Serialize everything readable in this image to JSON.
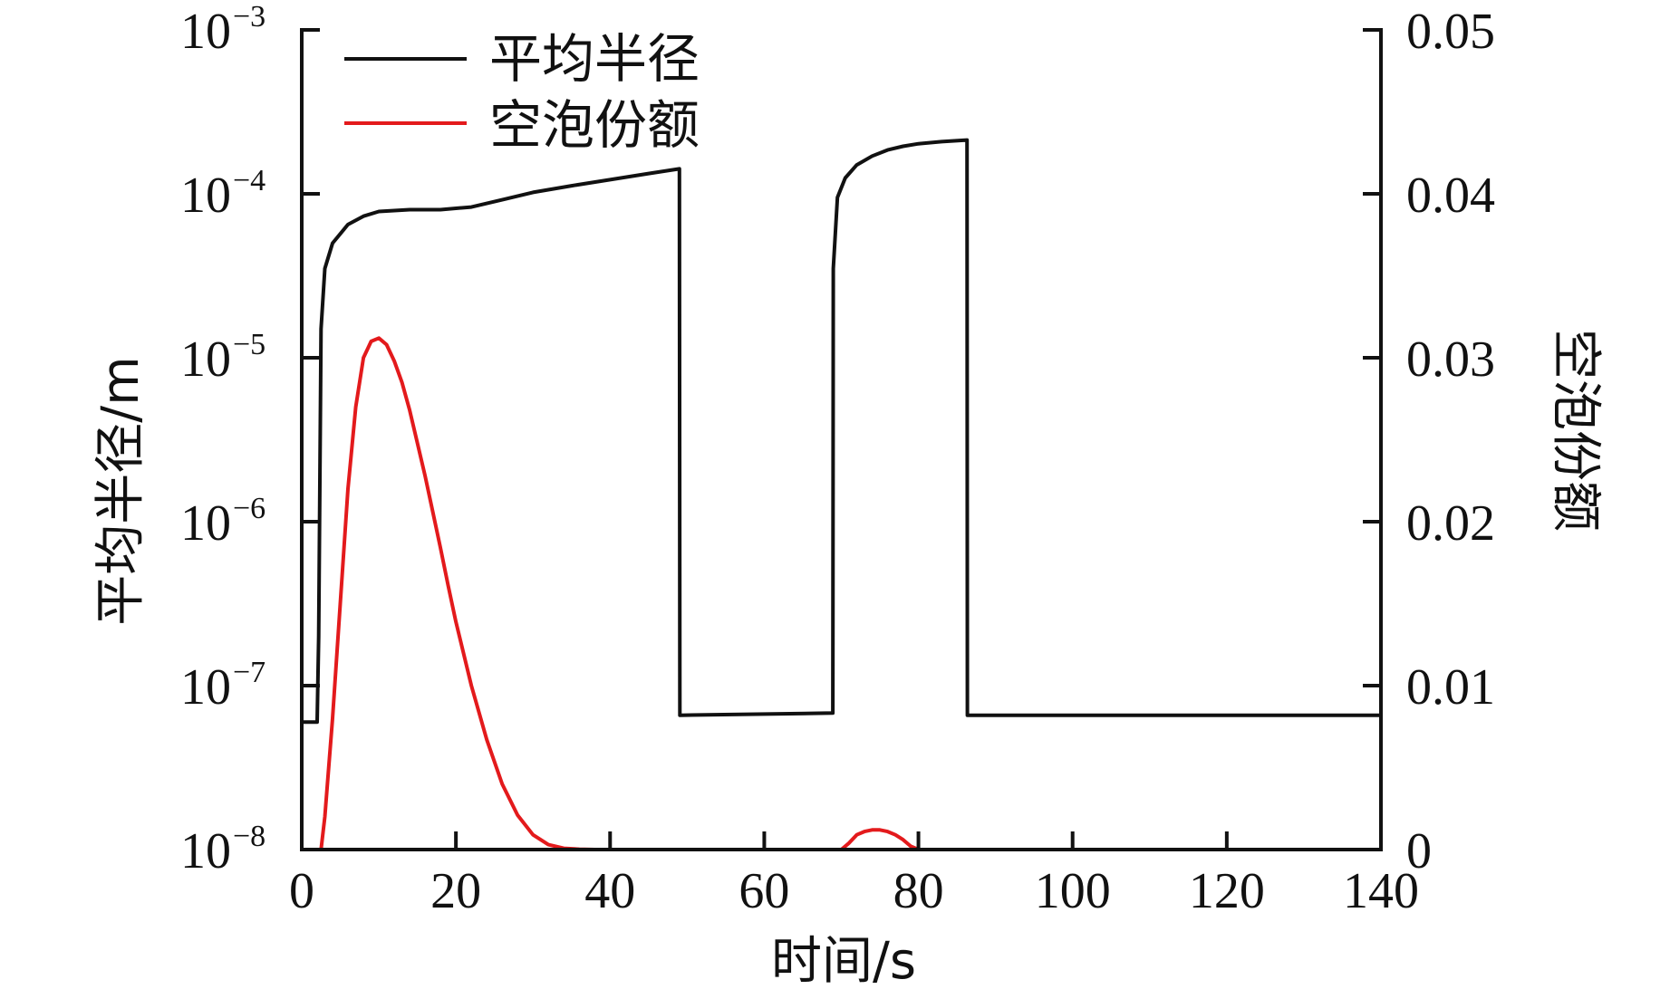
{
  "chart_data": {
    "type": "line",
    "xlabel": "时间/s",
    "ylabel": "平均半径/m",
    "ylabel_right": "空泡份额",
    "xlim": [
      0,
      140
    ],
    "ylim": [
      1e-08,
      0.001
    ],
    "ylim_right": [
      0,
      0.05
    ],
    "yscale": "log",
    "grid": false,
    "legend_position": "top-left",
    "x_ticks": [
      "0",
      "20",
      "40",
      "60",
      "80",
      "100",
      "120",
      "140"
    ],
    "y_ticks": [
      {
        "base": "10",
        "exp": "−3"
      },
      {
        "base": "10",
        "exp": "−4"
      },
      {
        "base": "10",
        "exp": "−5"
      },
      {
        "base": "10",
        "exp": "−6"
      },
      {
        "base": "10",
        "exp": "−7"
      },
      {
        "base": "10",
        "exp": "−8"
      }
    ],
    "y_ticks_right": [
      "0.05",
      "0.04",
      "0.03",
      "0.02",
      "0.01",
      "0"
    ],
    "series": [
      {
        "name": "平均半径",
        "axis": "left",
        "color": "#111111",
        "x": [
          0,
          2.0,
          2.2,
          2.5,
          3.0,
          4.0,
          6.0,
          8.0,
          10.0,
          14.0,
          18.0,
          22.0,
          26.0,
          30.0,
          35.0,
          40.0,
          45.0,
          49.0,
          49.05,
          68.9,
          68.95,
          69.5,
          70.5,
          72.0,
          74.0,
          76.0,
          78.0,
          80.0,
          83.0,
          86.3,
          86.35,
          140
        ],
        "y": [
          6e-08,
          6e-08,
          2e-07,
          1.5e-05,
          3.5e-05,
          5e-05,
          6.5e-05,
          7.3e-05,
          7.8e-05,
          8e-05,
          8e-05,
          8.3e-05,
          9.2e-05,
          0.000102,
          0.000112,
          0.000122,
          0.000133,
          0.000142,
          6.6e-08,
          6.8e-08,
          3.5e-05,
          9.5e-05,
          0.000125,
          0.00015,
          0.00017,
          0.000185,
          0.000195,
          0.000202,
          0.000208,
          0.000213,
          6.6e-08,
          6.6e-08
        ]
      },
      {
        "name": "空泡份额",
        "axis": "right",
        "color": "#e31a1c",
        "x": [
          0,
          2.5,
          3.0,
          4.0,
          5.0,
          6.0,
          7.0,
          8.0,
          9.0,
          10.0,
          11.0,
          12.0,
          13.0,
          14.0,
          15.0,
          16.0,
          17.0,
          18.0,
          19.0,
          20.0,
          22.0,
          24.0,
          26.0,
          28.0,
          30.0,
          32.0,
          34.0,
          36.0,
          38.0,
          40.0,
          50.0,
          60.0,
          70.0,
          71.0,
          72.0,
          73.0,
          74.0,
          75.0,
          76.0,
          77.0,
          78.0,
          79.0,
          80.0,
          90.0,
          140
        ],
        "y": [
          0,
          0,
          0.002,
          0.008,
          0.015,
          0.022,
          0.027,
          0.03,
          0.031,
          0.0312,
          0.0308,
          0.0298,
          0.0285,
          0.0268,
          0.0248,
          0.0228,
          0.0206,
          0.0184,
          0.0161,
          0.0139,
          0.01,
          0.0067,
          0.004,
          0.0021,
          0.0009,
          0.0003,
          8e-05,
          2e-05,
          0,
          0,
          0,
          0,
          0,
          0.0004,
          0.0009,
          0.0011,
          0.0012,
          0.0012,
          0.0011,
          0.0009,
          0.0006,
          0.0002,
          0,
          0,
          0
        ]
      }
    ]
  }
}
